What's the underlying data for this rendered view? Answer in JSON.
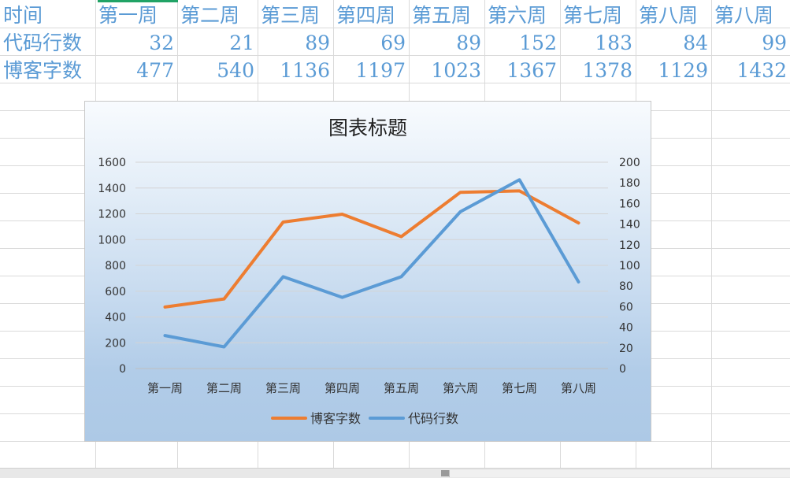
{
  "sheet": {
    "rows": [
      {
        "header": "时间",
        "cells": [
          "第一周",
          "第二周",
          "第三周",
          "第四周",
          "第五周",
          "第六周",
          "第七周",
          "第八周",
          "第八周"
        ]
      },
      {
        "header": "代码行数",
        "cells": [
          "32",
          "21",
          "89",
          "69",
          "89",
          "152",
          "183",
          "84",
          "99"
        ]
      },
      {
        "header": "博客字数",
        "cells": [
          "477",
          "540",
          "1136",
          "1197",
          "1023",
          "1367",
          "1378",
          "1129",
          "1432"
        ]
      }
    ]
  },
  "chart_data": {
    "type": "line",
    "title": "图表标题",
    "categories": [
      "第一周",
      "第二周",
      "第三周",
      "第四周",
      "第五周",
      "第六周",
      "第七周",
      "第八周"
    ],
    "series": [
      {
        "name": "博客字数",
        "axis": "primary",
        "color": "#ed7d31",
        "values": [
          477,
          540,
          1136,
          1197,
          1023,
          1367,
          1378,
          1129
        ]
      },
      {
        "name": "代码行数",
        "axis": "secondary",
        "color": "#5b9bd5",
        "values": [
          32,
          21,
          89,
          69,
          89,
          152,
          183,
          84
        ]
      }
    ],
    "y_primary": {
      "range": [
        0,
        1600
      ],
      "ticks": [
        "0",
        "200",
        "400",
        "600",
        "800",
        "1000",
        "1200",
        "1400",
        "1600"
      ]
    },
    "y_secondary": {
      "range": [
        0,
        200
      ],
      "ticks": [
        "0",
        "20",
        "40",
        "60",
        "80",
        "100",
        "120",
        "140",
        "160",
        "180",
        "200"
      ]
    },
    "grid": true,
    "legend_position": "bottom",
    "xlabel": "",
    "ylabel": ""
  },
  "colors": {
    "sheet_text": "#5b9bd5",
    "grid": "#dadada",
    "active_cell": "#21a366"
  }
}
